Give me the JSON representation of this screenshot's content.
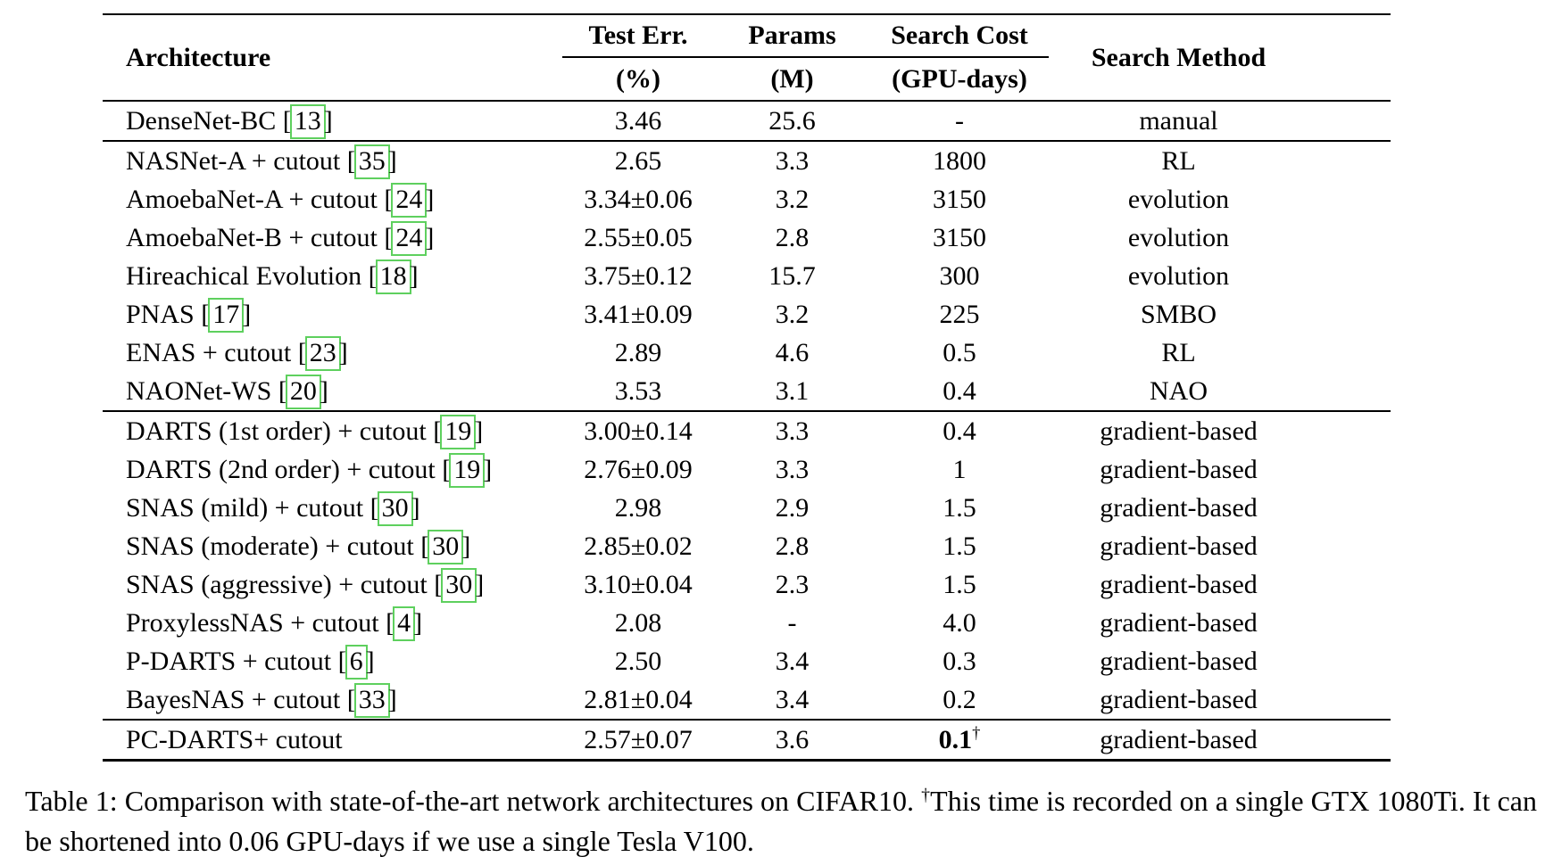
{
  "colors": {
    "citation_box_green": "#5ed05e",
    "text": "#000000",
    "background": "#ffffff"
  },
  "table": {
    "header": {
      "architecture": "Architecture",
      "test_err": "Test Err.",
      "test_err_unit": "(%)",
      "params": "Params",
      "params_unit": "(M)",
      "search_cost": "Search Cost",
      "search_cost_unit": "(GPU-days)",
      "search_method": "Search Method"
    },
    "punct": {
      "open": "[",
      "close": "]"
    },
    "rows": [
      {
        "name": "DenseNet-BC",
        "cite": "13",
        "err": "3.46",
        "params": "25.6",
        "cost": "-",
        "method": "manual"
      },
      {
        "name": "NASNet-A + cutout",
        "cite": "35",
        "err": "2.65",
        "params": "3.3",
        "cost": "1800",
        "method": "RL"
      },
      {
        "name": "AmoebaNet-A + cutout",
        "cite": "24",
        "err": "3.34±0.06",
        "params": "3.2",
        "cost": "3150",
        "method": "evolution"
      },
      {
        "name": "AmoebaNet-B + cutout",
        "cite": "24",
        "err": "2.55±0.05",
        "params": "2.8",
        "cost": "3150",
        "method": "evolution"
      },
      {
        "name": "Hireachical Evolution",
        "cite": "18",
        "err": "3.75±0.12",
        "params": "15.7",
        "cost": "300",
        "method": "evolution"
      },
      {
        "name": "PNAS",
        "cite": "17",
        "err": "3.41±0.09",
        "params": "3.2",
        "cost": "225",
        "method": "SMBO"
      },
      {
        "name": "ENAS + cutout",
        "cite": "23",
        "err": "2.89",
        "params": "4.6",
        "cost": "0.5",
        "method": "RL"
      },
      {
        "name": "NAONet-WS",
        "cite": "20",
        "err": "3.53",
        "params": "3.1",
        "cost": "0.4",
        "method": "NAO"
      },
      {
        "name": "DARTS (1st order) + cutout",
        "cite": "19",
        "err": "3.00±0.14",
        "params": "3.3",
        "cost": "0.4",
        "method": "gradient-based"
      },
      {
        "name": "DARTS (2nd order) + cutout",
        "cite": "19",
        "err": "2.76±0.09",
        "params": "3.3",
        "cost": "1",
        "method": "gradient-based"
      },
      {
        "name": "SNAS (mild) + cutout",
        "cite": "30",
        "err": "2.98",
        "params": "2.9",
        "cost": "1.5",
        "method": "gradient-based"
      },
      {
        "name": "SNAS (moderate) + cutout",
        "cite": "30",
        "err": "2.85±0.02",
        "params": "2.8",
        "cost": "1.5",
        "method": "gradient-based"
      },
      {
        "name": "SNAS (aggressive) + cutout",
        "cite": "30",
        "err": "3.10±0.04",
        "params": "2.3",
        "cost": "1.5",
        "method": "gradient-based"
      },
      {
        "name": "ProxylessNAS + cutout",
        "cite": "4",
        "err": "2.08",
        "params": "-",
        "cost": "4.0",
        "method": "gradient-based"
      },
      {
        "name": "P-DARTS + cutout",
        "cite": "6",
        "err": "2.50",
        "params": "3.4",
        "cost": "0.3",
        "method": "gradient-based"
      },
      {
        "name": "BayesNAS + cutout",
        "cite": "33",
        "err": "2.81±0.04",
        "params": "3.4",
        "cost": "0.2",
        "method": "gradient-based"
      },
      {
        "name": "PC-DARTS+ cutout",
        "cite": "",
        "err": "2.57±0.07",
        "params": "3.6",
        "cost": "0.1",
        "cost_sup": "†",
        "method": "gradient-based"
      }
    ]
  },
  "caption": {
    "part1": "Table 1: Comparison with state-of-the-art network architectures on CIFAR10. ",
    "dagger": "†",
    "part2": "This time is recorded on a single GTX 1080Ti. It can be shortened into 0.06 GPU-days if we use a single Tesla V100."
  }
}
